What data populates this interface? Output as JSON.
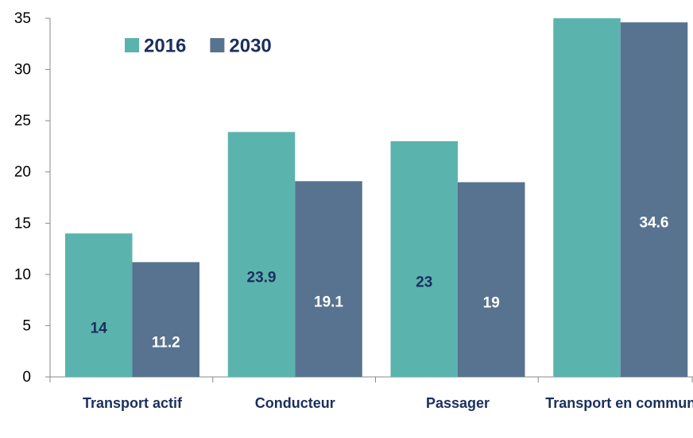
{
  "chart_data": {
    "type": "bar",
    "categories": [
      "Transport actif",
      "Conducteur",
      "Passager",
      "Transport en commun"
    ],
    "series": [
      {
        "name": "2016",
        "color": "#5bb3ad",
        "values": [
          14,
          23.9,
          23,
          35
        ],
        "value_labels": [
          "14",
          "23.9",
          "23",
          null
        ]
      },
      {
        "name": "2030",
        "color": "#58738f",
        "values": [
          11.2,
          19.1,
          19,
          34.6
        ]
      }
    ],
    "ylim": [
      0,
      35
    ],
    "yticks": [
      0,
      5,
      10,
      15,
      20,
      25,
      30,
      35
    ],
    "grid": false,
    "legend": "top-left"
  }
}
